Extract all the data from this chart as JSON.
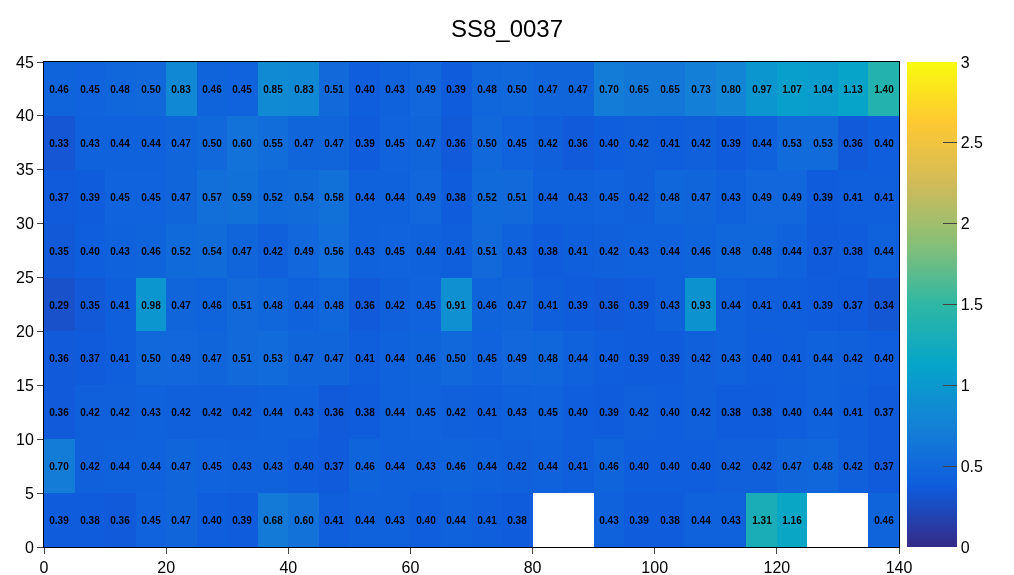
{
  "chart_data": {
    "type": "heatmap",
    "title": "SS8_0037",
    "x": [
      2.5,
      7.5,
      12.5,
      17.5,
      22.5,
      27.5,
      32.5,
      37.5,
      42.5,
      47.5,
      52.5,
      57.5,
      62.5,
      67.5,
      72.5,
      77.5,
      82.5,
      87.5,
      92.5,
      97.5,
      102.5,
      107.5,
      112.5,
      117.5,
      122.5,
      127.5,
      132.5,
      137.5
    ],
    "xlim": [
      0,
      140
    ],
    "xticks": [
      0,
      20,
      40,
      60,
      80,
      100,
      120,
      140
    ],
    "ylim": [
      0,
      45
    ],
    "yticks": [
      0,
      5,
      10,
      15,
      20,
      25,
      30,
      35,
      40,
      45
    ],
    "clim": [
      0,
      3
    ],
    "cticks": [
      0,
      0.5,
      1,
      1.5,
      2,
      2.5,
      3
    ],
    "cells": [
      [
        0.46,
        0.45,
        0.48,
        0.5,
        0.83,
        0.46,
        0.45,
        0.85,
        0.83,
        0.51,
        0.4,
        0.43,
        0.49,
        0.39,
        0.48,
        0.5,
        0.47,
        0.47,
        0.7,
        0.65,
        0.65,
        0.73,
        0.8,
        0.97,
        1.07,
        1.04,
        1.13,
        1.4
      ],
      [
        0.33,
        0.43,
        0.44,
        0.44,
        0.47,
        0.5,
        0.6,
        0.55,
        0.47,
        0.47,
        0.39,
        0.45,
        0.47,
        0.36,
        0.5,
        0.45,
        0.42,
        0.36,
        0.4,
        0.42,
        0.41,
        0.42,
        0.39,
        0.44,
        0.53,
        0.53,
        0.36,
        0.4
      ],
      [
        0.37,
        0.39,
        0.45,
        0.45,
        0.47,
        0.57,
        0.59,
        0.52,
        0.54,
        0.58,
        0.44,
        0.44,
        0.49,
        0.38,
        0.52,
        0.51,
        0.44,
        0.43,
        0.45,
        0.42,
        0.48,
        0.47,
        0.43,
        0.49,
        0.49,
        0.39,
        0.41,
        0.41
      ],
      [
        0.35,
        0.4,
        0.43,
        0.46,
        0.52,
        0.54,
        0.47,
        0.42,
        0.49,
        0.56,
        0.43,
        0.45,
        0.44,
        0.41,
        0.51,
        0.43,
        0.38,
        0.41,
        0.42,
        0.43,
        0.44,
        0.46,
        0.48,
        0.48,
        0.44,
        0.37,
        0.38,
        0.44
      ],
      [
        0.29,
        0.35,
        0.41,
        0.98,
        0.47,
        0.46,
        0.51,
        0.48,
        0.44,
        0.48,
        0.36,
        0.42,
        0.45,
        0.91,
        0.46,
        0.47,
        0.41,
        0.39,
        0.36,
        0.39,
        0.43,
        0.93,
        0.44,
        0.41,
        0.41,
        0.39,
        0.37,
        0.34
      ],
      [
        0.36,
        0.37,
        0.41,
        0.5,
        0.49,
        0.47,
        0.51,
        0.53,
        0.47,
        0.47,
        0.41,
        0.44,
        0.46,
        0.5,
        0.45,
        0.49,
        0.48,
        0.44,
        0.4,
        0.39,
        0.39,
        0.42,
        0.43,
        0.4,
        0.41,
        0.44,
        0.42,
        0.4
      ],
      [
        0.36,
        0.42,
        0.42,
        0.43,
        0.42,
        0.42,
        0.42,
        0.44,
        0.43,
        0.36,
        0.38,
        0.44,
        0.45,
        0.42,
        0.41,
        0.43,
        0.45,
        0.4,
        0.39,
        0.42,
        0.4,
        0.42,
        0.38,
        0.38,
        0.4,
        0.44,
        0.41,
        0.37
      ],
      [
        0.7,
        0.42,
        0.44,
        0.44,
        0.47,
        0.45,
        0.43,
        0.43,
        0.4,
        0.37,
        0.46,
        0.44,
        0.43,
        0.46,
        0.44,
        0.42,
        0.44,
        0.41,
        0.46,
        0.4,
        0.4,
        0.4,
        0.42,
        0.42,
        0.47,
        0.48,
        0.42,
        0.37
      ],
      [
        0.39,
        0.38,
        0.36,
        0.45,
        0.47,
        0.4,
        0.39,
        0.68,
        0.6,
        0.41,
        0.44,
        0.43,
        0.4,
        0.44,
        0.41,
        0.38,
        null,
        null,
        0.43,
        0.39,
        0.38,
        0.44,
        0.43,
        1.31,
        1.16,
        null,
        null,
        0.46
      ]
    ],
    "cell_labels": [
      [
        "0.46",
        "0.45",
        "0.48",
        "0.50",
        "0.83",
        "0.46",
        "0.45",
        "0.85",
        "0.83",
        "0.51",
        "0.40",
        "0.43",
        "0.49",
        "0.39",
        "0.48",
        "0.50",
        "0.47",
        "0.47",
        "0.70",
        "0.65",
        "0.65",
        "0.73",
        "0.80",
        "0.97",
        "1.07",
        "1.04",
        "1.13",
        "1.40"
      ],
      [
        "0.33",
        "0.43",
        "0.44",
        "0.44",
        "0.47",
        "0.50",
        "0.60",
        "0.55",
        "0.47",
        "0.47",
        "0.39",
        "0.45",
        "0.47",
        "0.36",
        "0.50",
        "0.45",
        "0.42",
        "0.36",
        "0.40",
        "0.42",
        "0.41",
        "0.42",
        "0.39",
        "0.44",
        "0.53",
        "0.53",
        "0.36",
        "0.40"
      ],
      [
        "0.37",
        "0.39",
        "0.45",
        "0.45",
        "0.47",
        "0.57",
        "0.59",
        "0.52",
        "0.54",
        "0.58",
        "0.44",
        "0.44",
        "0.49",
        "0.38",
        "0.52",
        "0.51",
        "0.44",
        "0.43",
        "0.45",
        "0.42",
        "0.48",
        "0.47",
        "0.43",
        "0.49",
        "0.49",
        "0.39",
        "0.41",
        "0.41"
      ],
      [
        "0.35",
        "0.40",
        "0.43",
        "0.46",
        "0.52",
        "0.54",
        "0.47",
        "0.42",
        "0.49",
        "0.56",
        "0.43",
        "0.45",
        "0.44",
        "0.41",
        "0.51",
        "0.43",
        "0.38",
        "0.41",
        "0.42",
        "0.43",
        "0.44",
        "0.46",
        "0.48",
        "0.48",
        "0.44",
        "0.37",
        "0.38",
        "0.44"
      ],
      [
        "0.29",
        "0.35",
        "0.41",
        "0.98",
        "0.47",
        "0.46",
        "0.51",
        "0.48",
        "0.44",
        "0.48",
        "0.36",
        "0.42",
        "0.45",
        "0.91",
        "0.46",
        "0.47",
        "0.41",
        "0.39",
        "0.36",
        "0.39",
        "0.43",
        "0.93",
        "0.44",
        "0.41",
        "0.41",
        "0.39",
        "0.37",
        "0.34"
      ],
      [
        "0.36",
        "0.37",
        "0.41",
        "0.50",
        "0.49",
        "0.47",
        "0.51",
        "0.53",
        "0.47",
        "0.47",
        "0.41",
        "0.44",
        "0.46",
        "0.50",
        "0.45",
        "0.49",
        "0.48",
        "0.44",
        "0.40",
        "0.39",
        "0.39",
        "0.42",
        "0.43",
        "0.40",
        "0.41",
        "0.44",
        "0.42",
        "0.40"
      ],
      [
        "0.36",
        "0.42",
        "0.42",
        "0.43",
        "0.42",
        "0.42",
        "0.42",
        "0.44",
        "0.43",
        "0.36",
        "0.38",
        "0.44",
        "0.45",
        "0.42",
        "0.41",
        "0.43",
        "0.45",
        "0.40",
        "0.39",
        "0.42",
        "0.40",
        "0.42",
        "0.38",
        "0.38",
        "0.40",
        "0.44",
        "0.41",
        "0.37"
      ],
      [
        "0.70",
        "0.42",
        "0.44",
        "0.44",
        "0.47",
        "0.45",
        "0.43",
        "0.43",
        "0.40",
        "0.37",
        "0.46",
        "0.44",
        "0.43",
        "0.46",
        "0.44",
        "0.42",
        "0.44",
        "0.41",
        "0.46",
        "0.40",
        "0.40",
        "0.40",
        "0.42",
        "0.42",
        "0.47",
        "0.48",
        "0.42",
        "0.37"
      ],
      [
        "0.39",
        "0.38",
        "0.36",
        "0.45",
        "0.47",
        "0.40",
        "0.39",
        "0.68",
        "0.60",
        "0.41",
        "0.44",
        "0.43",
        "0.40",
        "0.44",
        "0.41",
        "0.38",
        null,
        null,
        "0.43",
        "0.39",
        "0.38",
        "0.44",
        "0.43",
        "1.31",
        "1.16",
        null,
        null,
        "0.46"
      ]
    ]
  }
}
